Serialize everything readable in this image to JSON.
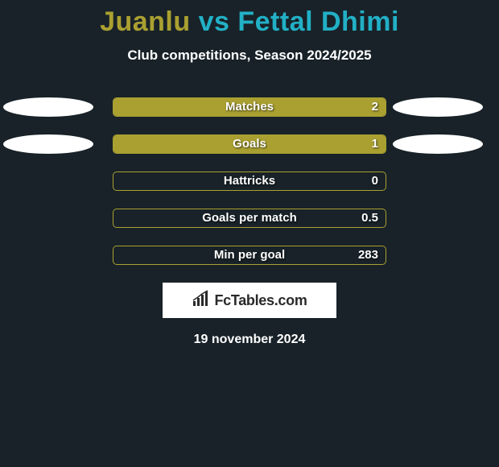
{
  "title": {
    "player1": "Juanlu",
    "vs": " vs ",
    "player2": "Fettal Dhimi",
    "color1": "#aaa031",
    "color2": "#22b0c6"
  },
  "subtitle": "Club competitions, Season 2024/2025",
  "brand": "FcTables.com",
  "date": "19 november 2024",
  "bar_track_color": "#aaa031",
  "bar_fill_color": "#aaa031",
  "ellipse_color": "#ffffff",
  "background_color": "#182228",
  "rows": [
    {
      "label": "Matches",
      "value": "2",
      "fill_pct": 100,
      "show_left": true,
      "show_right": true
    },
    {
      "label": "Goals",
      "value": "1",
      "fill_pct": 100,
      "show_left": true,
      "show_right": true
    },
    {
      "label": "Hattricks",
      "value": "0",
      "fill_pct": 0,
      "show_left": false,
      "show_right": false
    },
    {
      "label": "Goals per match",
      "value": "0.5",
      "fill_pct": 0,
      "show_left": false,
      "show_right": false
    },
    {
      "label": "Min per goal",
      "value": "283",
      "fill_pct": 0,
      "show_left": false,
      "show_right": false
    }
  ]
}
